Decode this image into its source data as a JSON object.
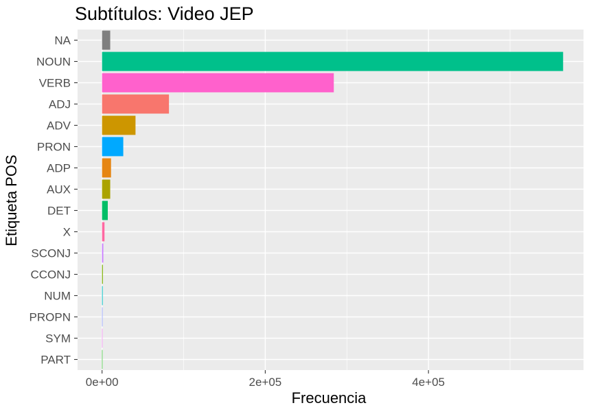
{
  "chart_data": {
    "type": "bar",
    "orientation": "horizontal",
    "title": "Subtítulos: Video JEP",
    "xlabel": "Frecuencia",
    "ylabel": "Etiqueta POS",
    "xlim": [
      -30000,
      590000
    ],
    "x_ticks": [
      {
        "value": 0,
        "label": "0e+00"
      },
      {
        "value": 200000,
        "label": "2e+05"
      },
      {
        "value": 400000,
        "label": "4e+05"
      }
    ],
    "x_minor_ticks": [
      100000,
      300000,
      500000
    ],
    "grid": true,
    "legend": "none",
    "panel_background": "#ebebeb",
    "grid_color": "#ffffff",
    "categories": [
      "NA",
      "NOUN",
      "VERB",
      "ADJ",
      "ADV",
      "PRON",
      "ADP",
      "AUX",
      "DET",
      "X",
      "SCONJ",
      "CCONJ",
      "NUM",
      "PROPN",
      "SYM",
      "PART"
    ],
    "values": [
      10000,
      565000,
      284000,
      82000,
      41000,
      26000,
      11000,
      10000,
      7000,
      3000,
      1500,
      1000,
      800,
      600,
      400,
      100
    ],
    "colors": [
      "#7f7f7f",
      "#00c08b",
      "#ff61cc",
      "#f8766d",
      "#cd9600",
      "#00a9ff",
      "#e68613",
      "#aba300",
      "#00be67",
      "#ff68a1",
      "#c77cff",
      "#7cae00",
      "#00bfc4",
      "#8494ff",
      "#ed68ed",
      "#0cb702"
    ]
  }
}
